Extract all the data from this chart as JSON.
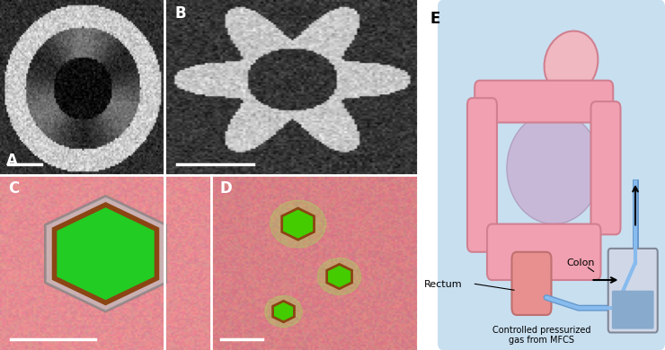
{
  "panel_labels": [
    "A",
    "B",
    "C",
    "D",
    "E"
  ],
  "label_color": "white",
  "label_color_E": "black",
  "bg_color_AB": "#888888",
  "bg_color_CD": "#cc8899",
  "bg_color_E": "#b8d4e8",
  "border_color": "white",
  "scale_bar_color": "white",
  "rectum_label": "Rectum",
  "colon_label": "Colon",
  "gas_label": "Controlled pressurized\ngas from MFCS",
  "title_fontsize": 11,
  "label_fontsize": 12,
  "annotation_fontsize": 8
}
